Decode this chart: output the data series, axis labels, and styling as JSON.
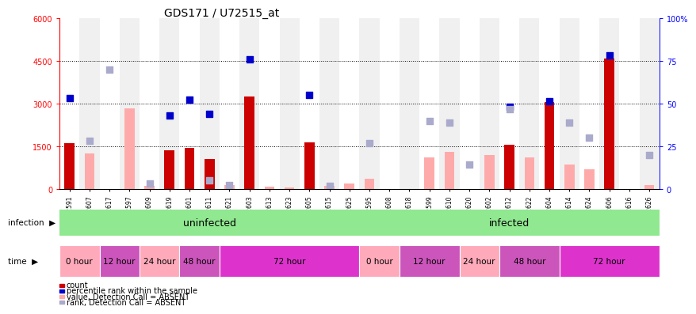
{
  "title": "GDS171 / U72515_at",
  "samples": [
    "GSM2591",
    "GSM2607",
    "GSM2617",
    "GSM2597",
    "GSM2609",
    "GSM2619",
    "GSM2601",
    "GSM2611",
    "GSM2621",
    "GSM2603",
    "GSM2613",
    "GSM2623",
    "GSM2605",
    "GSM2615",
    "GSM2625",
    "GSM2595",
    "GSM2608",
    "GSM2618",
    "GSM2599",
    "GSM2610",
    "GSM2620",
    "GSM2602",
    "GSM2612",
    "GSM2622",
    "GSM2604",
    "GSM2614",
    "GSM2624",
    "GSM2606",
    "GSM2616",
    "GSM2626"
  ],
  "count_present": [
    1600,
    0,
    0,
    0,
    0,
    1350,
    1450,
    1050,
    0,
    3250,
    0,
    0,
    1650,
    0,
    0,
    0,
    0,
    0,
    0,
    0,
    0,
    0,
    1550,
    0,
    3050,
    0,
    0,
    4600,
    0,
    0
  ],
  "count_absent": [
    0,
    1250,
    0,
    2850,
    100,
    0,
    0,
    0,
    150,
    0,
    80,
    50,
    0,
    100,
    200,
    350,
    0,
    0,
    1100,
    1300,
    0,
    1200,
    0,
    1100,
    0,
    850,
    700,
    0,
    0,
    150
  ],
  "rank_present": [
    3200,
    0,
    0,
    0,
    0,
    2600,
    3150,
    2650,
    0,
    4550,
    0,
    0,
    3300,
    0,
    0,
    0,
    0,
    0,
    0,
    0,
    0,
    0,
    2900,
    0,
    3100,
    0,
    0,
    4700,
    0,
    0
  ],
  "rank_absent": [
    0,
    1700,
    4200,
    0,
    200,
    0,
    0,
    300,
    150,
    0,
    0,
    0,
    0,
    100,
    0,
    1600,
    0,
    0,
    2400,
    2350,
    850,
    0,
    2800,
    0,
    0,
    2350,
    1800,
    0,
    0,
    1200
  ],
  "ylim_left": [
    0,
    6000
  ],
  "ylim_right": [
    0,
    100
  ],
  "yticks_left": [
    0,
    1500,
    3000,
    4500,
    6000
  ],
  "yticks_right": [
    0,
    25,
    50,
    75,
    100
  ],
  "color_count_present": "#cc0000",
  "color_count_absent": "#ffaaaa",
  "color_rank_present": "#0000cc",
  "color_rank_absent": "#aaaacc",
  "color_infection_bg": "#90e890",
  "uninfected_range": [
    0,
    14
  ],
  "infected_range": [
    15,
    29
  ],
  "time_segments": [
    {
      "start": 0,
      "end": 2,
      "label": "0 hour",
      "color": "#ffaabb"
    },
    {
      "start": 2,
      "end": 4,
      "label": "12 hour",
      "color": "#cc55bb"
    },
    {
      "start": 4,
      "end": 6,
      "label": "24 hour",
      "color": "#ffaabb"
    },
    {
      "start": 6,
      "end": 8,
      "label": "48 hour",
      "color": "#cc55bb"
    },
    {
      "start": 8,
      "end": 15,
      "label": "72 hour",
      "color": "#dd33cc"
    },
    {
      "start": 15,
      "end": 17,
      "label": "0 hour",
      "color": "#ffaabb"
    },
    {
      "start": 17,
      "end": 20,
      "label": "12 hour",
      "color": "#cc55bb"
    },
    {
      "start": 20,
      "end": 22,
      "label": "24 hour",
      "color": "#ffaabb"
    },
    {
      "start": 22,
      "end": 25,
      "label": "48 hour",
      "color": "#cc55bb"
    },
    {
      "start": 25,
      "end": 30,
      "label": "72 hour",
      "color": "#dd33cc"
    }
  ],
  "legend_items": [
    {
      "color": "#cc0000",
      "label": "count"
    },
    {
      "color": "#0000cc",
      "label": "percentile rank within the sample"
    },
    {
      "color": "#ffaaaa",
      "label": "value, Detection Call = ABSENT"
    },
    {
      "color": "#aaaacc",
      "label": "rank, Detection Call = ABSENT"
    }
  ]
}
